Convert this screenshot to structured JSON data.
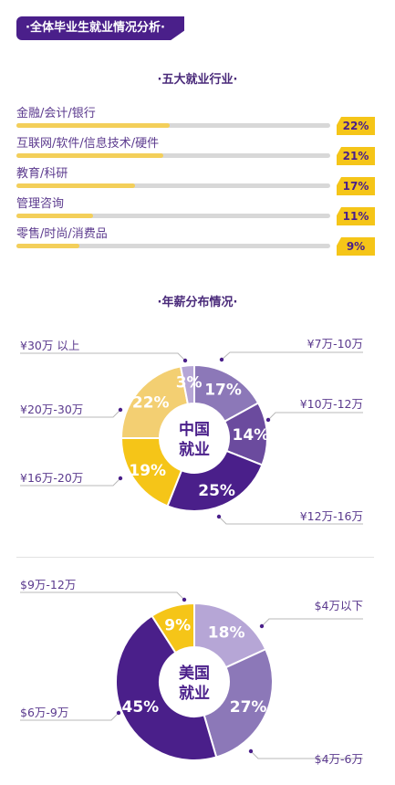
{
  "header": {
    "title": "·全体毕业生就业情况分析·"
  },
  "industries": {
    "title": "·五大就业行业·",
    "items": [
      {
        "label": "金融/会计/银行",
        "value": 22,
        "display": "22%"
      },
      {
        "label": "互联网/软件/信息技术/硬件",
        "value": 21,
        "display": "21%"
      },
      {
        "label": "教育/科研",
        "value": 17,
        "display": "17%"
      },
      {
        "label": "管理咨询",
        "value": 11,
        "display": "11%"
      },
      {
        "label": "零售/时尚/消费品",
        "value": 9,
        "display": "9%"
      }
    ]
  },
  "salary": {
    "title": "·年薪分布情况·"
  },
  "colors": {
    "dark_purple": "#4a1f8a",
    "mid_purple": "#6b4b9e",
    "light_purple": "#8c78b8",
    "lavender": "#b6a6d6",
    "yellow": "#f5c518",
    "light_yellow": "#f3cf72",
    "bar_track": "#d8d8d8"
  },
  "chart_data": [
    {
      "type": "pie",
      "center_label": [
        "中国",
        "就业"
      ],
      "slices": [
        {
          "label": "¥7万-10万",
          "value": 17,
          "display": "17%",
          "color": "#8c78b8"
        },
        {
          "label": "¥10万-12万",
          "value": 14,
          "display": "14%",
          "color": "#6b4b9e"
        },
        {
          "label": "¥12万-16万",
          "value": 25,
          "display": "25%",
          "color": "#4a1f8a"
        },
        {
          "label": "¥16万-20万",
          "value": 19,
          "display": "19%",
          "color": "#f5c518"
        },
        {
          "label": "¥20万-30万",
          "value": 22,
          "display": "22%",
          "color": "#f3cf72"
        },
        {
          "label": "¥30万 以上",
          "value": 3,
          "display": "3%",
          "color": "#b6a6d6"
        }
      ]
    },
    {
      "type": "pie",
      "center_label": [
        "美国",
        "就业"
      ],
      "slices": [
        {
          "label": "$4万以下",
          "value": 18,
          "display": "18%",
          "color": "#b6a6d6"
        },
        {
          "label": "$4万-6万",
          "value": 27,
          "display": "27%",
          "color": "#8c78b8"
        },
        {
          "label": "$6万-9万",
          "value": 45,
          "display": "45%",
          "color": "#4a1f8a"
        },
        {
          "label": "$9万-12万",
          "value": 9,
          "display": "9%",
          "color": "#f5c518"
        }
      ]
    }
  ]
}
